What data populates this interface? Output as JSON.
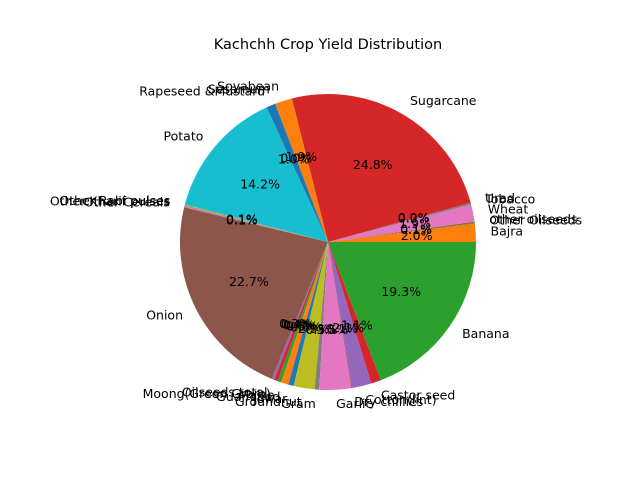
{
  "chart_data": {
    "type": "pie",
    "title": "Kachchh Crop Yield Distribution",
    "start_angle_deg": 0,
    "direction": "counterclockwise",
    "slices": [
      {
        "label": "Bajra",
        "value": 2.0,
        "pct_label": "2.0%",
        "color": "#ff7f0e"
      },
      {
        "label": "Other Oilseeds",
        "value": 0.1,
        "pct_label": "0.1%",
        "color": "#2ca02c"
      },
      {
        "label": "other oilseeds",
        "value": 0.1,
        "pct_label": "0.1%",
        "color": "#d62728"
      },
      {
        "label": "Wheat",
        "value": 1.9,
        "pct_label": "1.9%",
        "color": "#e377c2"
      },
      {
        "label": "Tobacco",
        "value": 0.2,
        "pct_label": "0.2%",
        "color": "#7f7f7f"
      },
      {
        "label": "Urad",
        "value": 0.0,
        "pct_label": "0.0%",
        "color": "#bcbd22"
      },
      {
        "label": "Sugarcane",
        "value": 24.8,
        "pct_label": "24.8%",
        "color": "#d62728"
      },
      {
        "label": "Soyabean",
        "value": 1.9,
        "pct_label": "1.9%",
        "color": "#ff7f0e"
      },
      {
        "label": "Sesamum",
        "value": 0.0,
        "pct_label": "0.0%",
        "color": "#2ca02c"
      },
      {
        "label": "Rapeseed &Mustard",
        "value": 1.0,
        "pct_label": "1.0%",
        "color": "#1f77b4"
      },
      {
        "label": "Potato",
        "value": 14.2,
        "pct_label": "14.2%",
        "color": "#17becf"
      },
      {
        "label": "Other Rabi pulses",
        "value": 0.1,
        "pct_label": "0.1%",
        "color": "#bcbd22"
      },
      {
        "label": "Other Kharif pulses",
        "value": 0.1,
        "pct_label": "0.1%",
        "color": "#7f7f7f"
      },
      {
        "label": "Other Cereals",
        "value": 0.1,
        "pct_label": "0.1%",
        "color": "#e377c2"
      },
      {
        "label": "Onion",
        "value": 22.7,
        "pct_label": "22.7%",
        "color": "#8c564b"
      },
      {
        "label": "Oilseeds total",
        "value": 0.3,
        "pct_label": "0.3%",
        "color": "#9467bd"
      },
      {
        "label": "Moong(Green Gram)",
        "value": 0.4,
        "pct_label": "0.4%",
        "color": "#d62728"
      },
      {
        "label": "Maize",
        "value": 0.4,
        "pct_label": "0.4%",
        "color": "#2ca02c"
      },
      {
        "label": "Guar seed",
        "value": 0.8,
        "pct_label": "0.8%",
        "color": "#ff7f0e"
      },
      {
        "label": "Jowar",
        "value": 0.6,
        "pct_label": "0.6%",
        "color": "#1f77b4"
      },
      {
        "label": "Groundnut",
        "value": 2.3,
        "pct_label": "2.3%",
        "color": "#bcbd22"
      },
      {
        "label": "Gram",
        "value": 0.5,
        "pct_label": "0.5%",
        "color": "#7f7f7f"
      },
      {
        "label": "Garlic",
        "value": 3.5,
        "pct_label": "3.5%",
        "color": "#e377c2"
      },
      {
        "label": "Dry chillies",
        "value": 0.1,
        "pct_label": "0.1%",
        "color": "#8c564b"
      },
      {
        "label": "Cotton(lint)",
        "value": 2.1,
        "pct_label": "2.1%",
        "color": "#9467bd"
      },
      {
        "label": "Castor seed",
        "value": 1.1,
        "pct_label": "1.1%",
        "color": "#d62728"
      },
      {
        "label": "Banana",
        "value": 19.3,
        "pct_label": "19.3%",
        "color": "#2ca02c"
      }
    ]
  }
}
